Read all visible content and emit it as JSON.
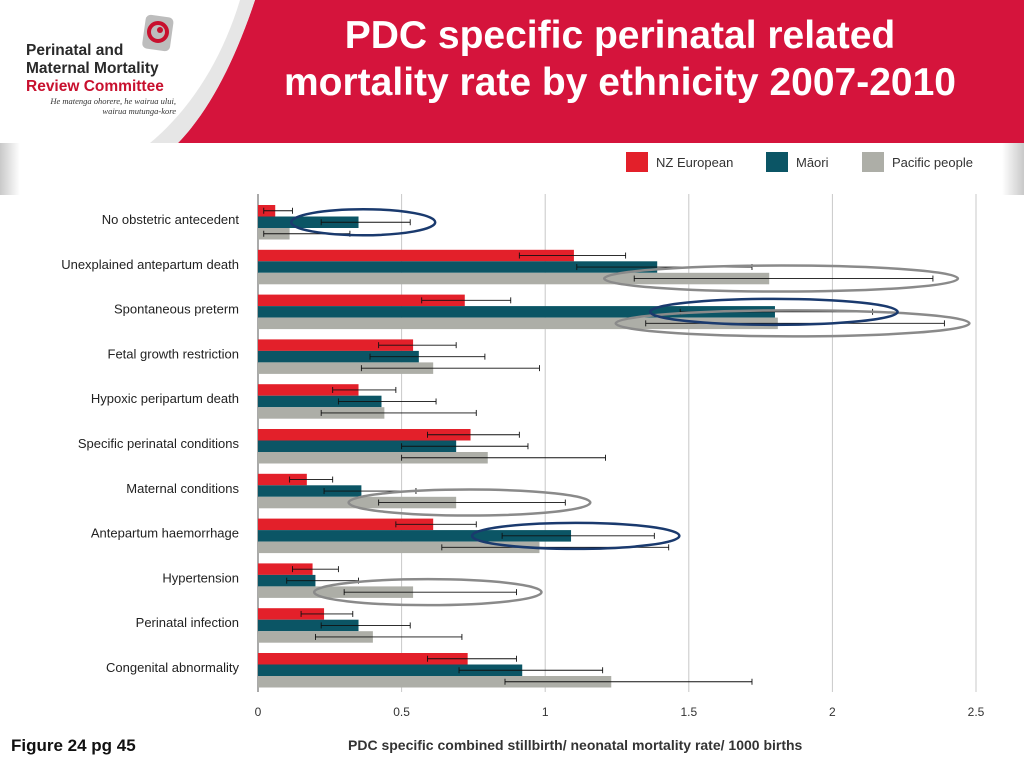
{
  "header": {
    "title_line1": "PDC specific perinatal related",
    "title_line2": "mortality rate by ethnicity 2007-2010",
    "logo_line1": "Perinatal and",
    "logo_line2": "Maternal Mortality",
    "logo_line3": "Review Committee",
    "logo_tagline1": "He matenga ohorere, he wairua ului,",
    "logo_tagline2": "wairua mutunga-kore",
    "banner_color": "#d5143c"
  },
  "caption": "Figure 24 pg 45",
  "chart_data": {
    "type": "bar",
    "orientation": "horizontal",
    "xlabel": "PDC specific combined stillbirth/ neonatal mortality rate/ 1000 births",
    "xlim": [
      0,
      2.5
    ],
    "xticks": [
      "0",
      "0.5",
      "1",
      "1.5",
      "2",
      "2.5"
    ],
    "grid": true,
    "legend_position": "top-right",
    "categories": [
      "No obstetric antecedent",
      "Unexplained antepartum death",
      "Spontaneous preterm",
      "Fetal growth restriction",
      "Hypoxic peripartum death",
      "Specific perinatal conditions",
      "Maternal conditions",
      "Antepartum haemorrhage",
      "Hypertension",
      "Perinatal infection",
      "Congenital abnormality"
    ],
    "series": [
      {
        "name": "NZ European",
        "color": "#e3202a",
        "values": [
          0.06,
          1.1,
          0.72,
          0.54,
          0.35,
          0.74,
          0.17,
          0.61,
          0.19,
          0.23,
          0.73
        ],
        "ci_low": [
          0.02,
          0.91,
          0.57,
          0.42,
          0.26,
          0.59,
          0.11,
          0.48,
          0.12,
          0.15,
          0.59
        ],
        "ci_high": [
          0.12,
          1.28,
          0.88,
          0.69,
          0.48,
          0.91,
          0.26,
          0.76,
          0.28,
          0.33,
          0.9
        ]
      },
      {
        "name": "Māori",
        "color": "#0b5565",
        "values": [
          0.35,
          1.39,
          1.8,
          0.56,
          0.43,
          0.69,
          0.36,
          1.09,
          0.2,
          0.35,
          0.92
        ],
        "ci_low": [
          0.22,
          1.11,
          1.47,
          0.39,
          0.28,
          0.5,
          0.23,
          0.85,
          0.1,
          0.22,
          0.7
        ],
        "ci_high": [
          0.53,
          1.72,
          2.14,
          0.79,
          0.62,
          0.94,
          0.55,
          1.38,
          0.35,
          0.53,
          1.2
        ]
      },
      {
        "name": "Pacific people",
        "color": "#adaea7",
        "values": [
          0.11,
          1.78,
          1.81,
          0.61,
          0.44,
          0.8,
          0.69,
          0.98,
          0.54,
          0.4,
          1.23
        ],
        "ci_low": [
          0.02,
          1.31,
          1.35,
          0.36,
          0.22,
          0.5,
          0.42,
          0.64,
          0.3,
          0.2,
          0.86
        ],
        "ci_high": [
          0.32,
          2.35,
          2.39,
          0.98,
          0.76,
          1.21,
          1.07,
          1.43,
          0.9,
          0.71,
          1.72
        ]
      }
    ],
    "annotations": [
      {
        "type": "ellipse",
        "category": "No obstetric antecedent",
        "series": "Māori",
        "color": "#1a3a6e"
      },
      {
        "type": "ellipse",
        "category": "Unexplained antepartum death",
        "series": "Pacific people",
        "color": "#8a8a8a"
      },
      {
        "type": "ellipse",
        "category": "Spontaneous preterm",
        "series": "Pacific people",
        "color": "#8a8a8a"
      },
      {
        "type": "ellipse",
        "category": "Spontaneous preterm",
        "series": "Māori",
        "color": "#1a3a6e"
      },
      {
        "type": "ellipse",
        "category": "Maternal conditions",
        "series": "Pacific people",
        "color": "#8a8a8a"
      },
      {
        "type": "ellipse",
        "category": "Antepartum haemorrhage",
        "series": "Māori",
        "color": "#1a3a6e"
      },
      {
        "type": "ellipse",
        "category": "Hypertension",
        "series": "Pacific people",
        "color": "#8a8a8a"
      }
    ]
  }
}
